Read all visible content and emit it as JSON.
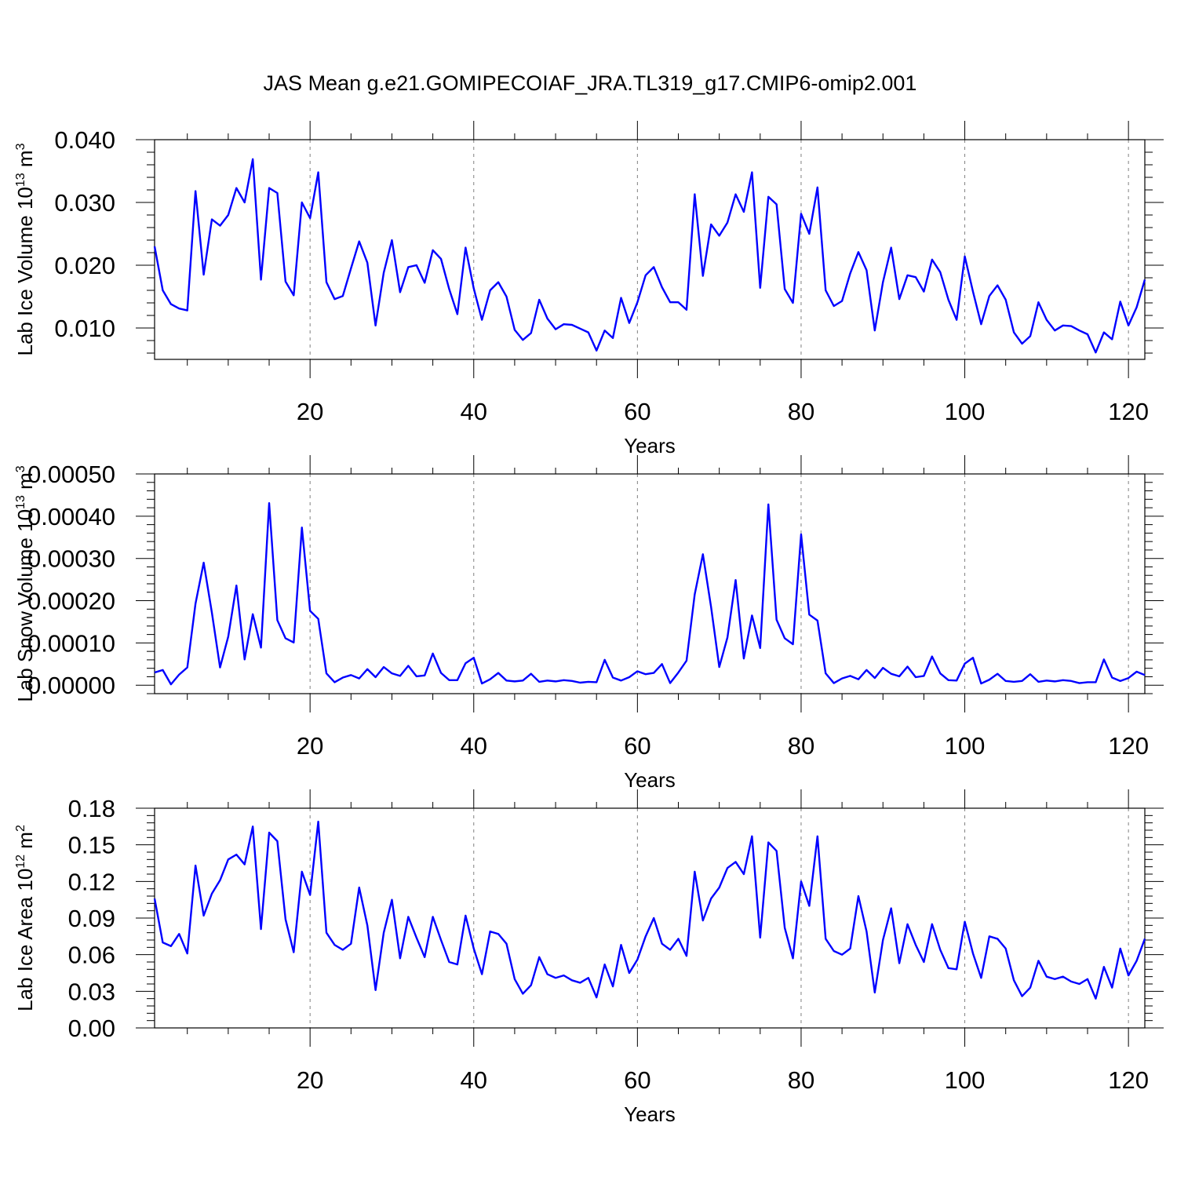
{
  "chart_data": [
    {
      "type": "line",
      "title": "JAS Mean g.e21.GOMIPECOIAF_JRA.TL319_g17.CMIP6-omip2.001",
      "xlabel": "Years",
      "ylabel": "Lab Ice Volume 10",
      "ylabel_exp": "13",
      "ylabel_unit": " m",
      "ylabel_unit_exp": "3",
      "xlim": [
        1,
        122
      ],
      "ylim": [
        0.005,
        0.04
      ],
      "xticks": [
        20,
        40,
        60,
        80,
        100,
        120
      ],
      "xtick_labels": [
        "20",
        "40",
        "60",
        "80",
        "100",
        "120"
      ],
      "yticks": [
        0.01,
        0.02,
        0.03,
        0.04
      ],
      "ytick_labels": [
        "0.010",
        "0.020",
        "0.030",
        "0.040"
      ],
      "grid": "vertical dashed at major x ticks",
      "color": "#0000ff",
      "x_start": 1,
      "series": [
        {
          "values": [
            0.023,
            0.016,
            0.0138,
            0.0131,
            0.0128,
            0.0318,
            0.0185,
            0.0273,
            0.0263,
            0.028,
            0.0323,
            0.03,
            0.0369,
            0.0177,
            0.0323,
            0.0315,
            0.0174,
            0.0152,
            0.03,
            0.0275,
            0.0348,
            0.0173,
            0.0146,
            0.0151,
            0.0195,
            0.0238,
            0.0204,
            0.0104,
            0.0188,
            0.024,
            0.0157,
            0.0197,
            0.02,
            0.0172,
            0.0224,
            0.021,
            0.0162,
            0.0122,
            0.0228,
            0.0163,
            0.0113,
            0.016,
            0.0173,
            0.015,
            0.0097,
            0.0081,
            0.0092,
            0.0145,
            0.0115,
            0.0098,
            0.0106,
            0.0105,
            0.0099,
            0.0093,
            0.0064,
            0.0096,
            0.0084,
            0.0148,
            0.0108,
            0.0141,
            0.0184,
            0.0197,
            0.0165,
            0.0141,
            0.0141,
            0.0129,
            0.0313,
            0.0183,
            0.0265,
            0.0247,
            0.0268,
            0.0313,
            0.0285,
            0.0348,
            0.0164,
            0.0309,
            0.0297,
            0.0162,
            0.014,
            0.0282,
            0.025,
            0.0324,
            0.016,
            0.0135,
            0.0143,
            0.0187,
            0.0221,
            0.0192,
            0.0096,
            0.0173,
            0.0228,
            0.0146,
            0.0184,
            0.0181,
            0.0158,
            0.0209,
            0.0189,
            0.0145,
            0.0113,
            0.0214,
            0.0158,
            0.0106,
            0.0151,
            0.0168,
            0.0145,
            0.0093,
            0.0075,
            0.0087,
            0.0141,
            0.0113,
            0.0096,
            0.0104,
            0.0103,
            0.0096,
            0.009,
            0.0061,
            0.0093,
            0.0082,
            0.0142,
            0.0104,
            0.0133,
            0.0177
          ]
        }
      ]
    },
    {
      "type": "line",
      "title": "",
      "xlabel": "Years",
      "ylabel": "Lab Snow Volume 10",
      "ylabel_exp": "13",
      "ylabel_unit": " m",
      "ylabel_unit_exp": "3",
      "xlim": [
        1,
        122
      ],
      "ylim": [
        -2e-05,
        0.0005
      ],
      "xticks": [
        20,
        40,
        60,
        80,
        100,
        120
      ],
      "xtick_labels": [
        "20",
        "40",
        "60",
        "80",
        "100",
        "120"
      ],
      "yticks": [
        0.0,
        0.0001,
        0.0002,
        0.0003,
        0.0004,
        0.0005
      ],
      "ytick_labels": [
        "0.00000",
        "0.00010",
        "0.00020",
        "0.00030",
        "0.00040",
        "0.00050"
      ],
      "grid": "vertical dashed at major x ticks",
      "color": "#0000ff",
      "x_start": 1,
      "series": [
        {
          "values": [
            3e-05,
            3.6e-05,
            2e-06,
            2.5e-05,
            4.2e-05,
            0.000193,
            0.00029,
            0.000172,
            4.2e-05,
            0.000115,
            0.000236,
            6.1e-05,
            0.000168,
            8.9e-05,
            0.000431,
            0.000154,
            0.000111,
            0.000101,
            0.000373,
            0.000176,
            0.000157,
            2.8e-05,
            7e-06,
            1.8e-05,
            2.4e-05,
            1.6e-05,
            3.8e-05,
            1.9e-05,
            4.3e-05,
            2.8e-05,
            2.2e-05,
            4.6e-05,
            2.1e-05,
            2.3e-05,
            7.5e-05,
            2.9e-05,
            1.2e-05,
            1.2e-05,
            5.2e-05,
            6.5e-05,
            4e-06,
            1.4e-05,
            2.9e-05,
            1.1e-05,
            9e-06,
            1.1e-05,
            2.7e-05,
            8e-06,
            1.1e-05,
            9e-06,
            1.2e-05,
            1e-05,
            6e-06,
            8e-06,
            7e-06,
            6e-05,
            1.8e-05,
            1.1e-05,
            1.9e-05,
            3.3e-05,
            2.6e-05,
            2.9e-05,
            5e-05,
            5e-06,
            3e-05,
            5.8e-05,
            0.000215,
            0.00031,
            0.000185,
            4.3e-05,
            0.000113,
            0.000249,
            6.3e-05,
            0.000165,
            8.8e-05,
            0.000428,
            0.000155,
            0.000111,
            9.7e-05,
            0.000357,
            0.000167,
            0.000153,
            2.8e-05,
            5e-06,
            1.6e-05,
            2.2e-05,
            1.4e-05,
            3.6e-05,
            1.7e-05,
            4.1e-05,
            2.7e-05,
            2.1e-05,
            4.4e-05,
            1.9e-05,
            2.2e-05,
            6.8e-05,
            2.8e-05,
            1.2e-05,
            1.1e-05,
            5.1e-05,
            6.5e-05,
            4e-06,
            1.3e-05,
            2.7e-05,
            1e-05,
            8e-06,
            1e-05,
            2.6e-05,
            8e-06,
            1.1e-05,
            9e-06,
            1.2e-05,
            1e-05,
            5e-06,
            7e-06,
            7e-06,
            6.1e-05,
            1.8e-05,
            1e-05,
            1.7e-05,
            3.2e-05,
            2.4e-05
          ]
        }
      ]
    },
    {
      "type": "line",
      "title": "",
      "xlabel": "Years",
      "ylabel": "Lab Ice Area 10",
      "ylabel_exp": "12",
      "ylabel_unit": " m",
      "ylabel_unit_exp": "2",
      "xlim": [
        1,
        122
      ],
      "ylim": [
        0.0,
        0.18
      ],
      "xticks": [
        20,
        40,
        60,
        80,
        100,
        120
      ],
      "xtick_labels": [
        "20",
        "40",
        "60",
        "80",
        "100",
        "120"
      ],
      "yticks": [
        0.0,
        0.03,
        0.06,
        0.09,
        0.12,
        0.15,
        0.18
      ],
      "ytick_labels": [
        "0.00",
        "0.03",
        "0.06",
        "0.09",
        "0.12",
        "0.15",
        "0.18"
      ],
      "grid": "vertical dashed at major x ticks",
      "color": "#0000ff",
      "x_start": 1,
      "series": [
        {
          "values": [
            0.106,
            0.07,
            0.067,
            0.077,
            0.061,
            0.133,
            0.092,
            0.11,
            0.121,
            0.138,
            0.142,
            0.134,
            0.165,
            0.081,
            0.16,
            0.153,
            0.089,
            0.062,
            0.128,
            0.109,
            0.169,
            0.078,
            0.068,
            0.064,
            0.069,
            0.115,
            0.084,
            0.031,
            0.078,
            0.105,
            0.057,
            0.091,
            0.074,
            0.058,
            0.091,
            0.072,
            0.054,
            0.052,
            0.092,
            0.065,
            0.044,
            0.079,
            0.077,
            0.069,
            0.04,
            0.028,
            0.035,
            0.058,
            0.044,
            0.041,
            0.043,
            0.039,
            0.037,
            0.041,
            0.025,
            0.052,
            0.034,
            0.068,
            0.045,
            0.056,
            0.075,
            0.09,
            0.069,
            0.064,
            0.073,
            0.059,
            0.128,
            0.088,
            0.106,
            0.115,
            0.131,
            0.136,
            0.126,
            0.157,
            0.074,
            0.152,
            0.145,
            0.082,
            0.057,
            0.12,
            0.1,
            0.157,
            0.073,
            0.063,
            0.06,
            0.065,
            0.108,
            0.079,
            0.029,
            0.072,
            0.098,
            0.053,
            0.085,
            0.068,
            0.054,
            0.085,
            0.064,
            0.049,
            0.048,
            0.087,
            0.061,
            0.041,
            0.075,
            0.073,
            0.065,
            0.039,
            0.026,
            0.033,
            0.055,
            0.042,
            0.04,
            0.042,
            0.038,
            0.036,
            0.04,
            0.024,
            0.05,
            0.033,
            0.065,
            0.043,
            0.055,
            0.073
          ]
        }
      ]
    }
  ]
}
